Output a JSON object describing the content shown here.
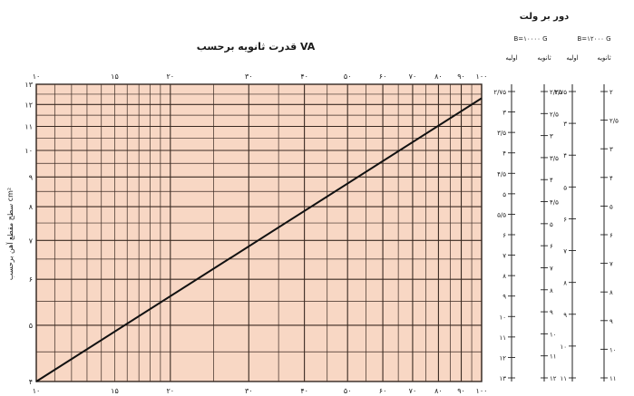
{
  "chart_data": {
    "type": "line",
    "title": "قدرت ثانویه برحسب VA",
    "ylabel": "سطح مقطع آهن برحسب cm²",
    "x_ticks": [
      "۱۰",
      "۱۵",
      "۲۰",
      "۳۰",
      "۴۰",
      "۵۰",
      "۶۰",
      "۷۰",
      "۸۰",
      "۹۰",
      "۱۰۰"
    ],
    "y_ticks": [
      "۴",
      "۵",
      "۶",
      "۷",
      "۸",
      "۹",
      "۱۰",
      "۱۱",
      "۱۲",
      "۱۳"
    ],
    "series": [
      {
        "x": [
          10,
          100
        ],
        "y": [
          4,
          12.3
        ]
      }
    ],
    "xlim": [
      10,
      100
    ],
    "ylim": [
      4,
      13
    ],
    "background": "#f8d7c4",
    "grid": true
  },
  "right_panel": {
    "header": "دور بر ولت",
    "columns": [
      {
        "flux": "B=۱۰۰۰۰ G",
        "labels": [
          "ثانویه",
          "اولیه"
        ]
      },
      {
        "flux": "B=۱۲۰۰۰ G",
        "labels": [
          "ثانویه",
          "اولیه"
        ]
      }
    ],
    "scales": [
      {
        "ticks": [
          "۲/۷۵",
          "۳",
          "۳/۵",
          "۴",
          "۴/۵",
          "۵",
          "۵/۵",
          "۶",
          "۷",
          "۸",
          "۹",
          "۱۰",
          "۱۱",
          "۱۲",
          "۱۳"
        ]
      },
      {
        "ticks": [
          "۲/۲۵",
          "۲/۵",
          "۳",
          "۳/۵",
          "۴",
          "۴/۵",
          "۵",
          "۶",
          "۷",
          "۸",
          "۹",
          "۱۰",
          "۱۱",
          "۱۲"
        ]
      },
      {
        "ticks": [
          "۲/۷۵",
          "۳",
          "۴",
          "۵",
          "۶",
          "۷",
          "۸",
          "۹",
          "۱۰",
          "۱۱"
        ]
      },
      {
        "ticks": [
          "۲",
          "۲/۵",
          "۳",
          "۴",
          "۵",
          "۶",
          "۷",
          "۸",
          "۹",
          "۱۰",
          "۱۱"
        ]
      }
    ]
  }
}
